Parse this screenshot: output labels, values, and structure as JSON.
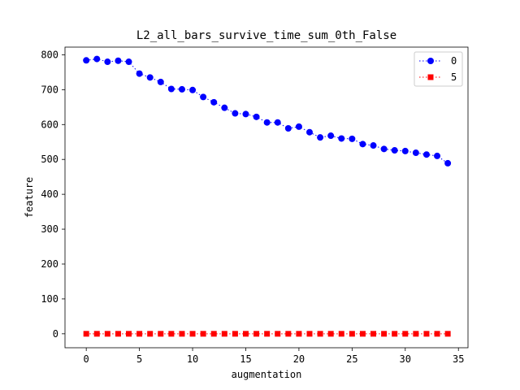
{
  "chart_data": {
    "type": "line",
    "title": "L2_all_bars_survive_time_sum_0th_False",
    "xlabel": "augmentation",
    "ylabel": "feature",
    "xlim": [
      -2.0,
      35.9
    ],
    "ylim": [
      -40,
      822
    ],
    "xticks": [
      0,
      5,
      10,
      15,
      20,
      25,
      30,
      35
    ],
    "yticks": [
      0,
      100,
      200,
      300,
      400,
      500,
      600,
      700,
      800
    ],
    "grid": false,
    "legend_position": "top-right",
    "x": [
      0,
      1,
      2,
      3,
      4,
      5,
      6,
      7,
      8,
      9,
      10,
      11,
      12,
      13,
      14,
      15,
      16,
      17,
      18,
      19,
      20,
      21,
      22,
      23,
      24,
      25,
      26,
      27,
      28,
      29,
      30,
      31,
      32,
      33,
      34
    ],
    "series": [
      {
        "name": "0",
        "color": "#0000ff",
        "marker": "circle",
        "linestyle": "dotted",
        "values": [
          784,
          788,
          780,
          783,
          780,
          746,
          735,
          722,
          702,
          701,
          699,
          679,
          664,
          648,
          632,
          630,
          622,
          606,
          606,
          589,
          594,
          578,
          563,
          568,
          560,
          559,
          544,
          540,
          530,
          526,
          524,
          519,
          514,
          510,
          489
        ]
      },
      {
        "name": "5",
        "color": "#ff0000",
        "marker": "square",
        "linestyle": "dotted",
        "values": [
          0,
          0,
          0,
          0,
          0,
          0,
          0,
          0,
          0,
          0,
          0,
          0,
          0,
          0,
          0,
          0,
          0,
          0,
          0,
          0,
          0,
          0,
          0,
          0,
          0,
          0,
          0,
          0,
          0,
          0,
          0,
          0,
          0,
          0,
          0
        ]
      }
    ]
  }
}
